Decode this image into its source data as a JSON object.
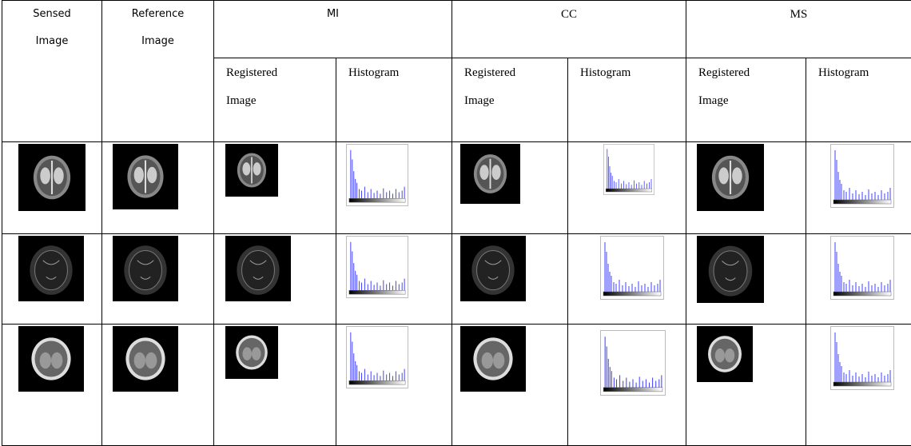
{
  "header": {
    "sensed_image": "Sensed Image",
    "reference_image": "Reference Image",
    "groups": [
      {
        "name": "MI",
        "columns": [
          "Registered Image",
          "Histogram"
        ]
      },
      {
        "name": "CC",
        "columns": [
          "Registered Image",
          "Histogram"
        ]
      },
      {
        "name": "MS",
        "columns": [
          "Registered Image",
          "Histogram"
        ]
      }
    ]
  }
}
